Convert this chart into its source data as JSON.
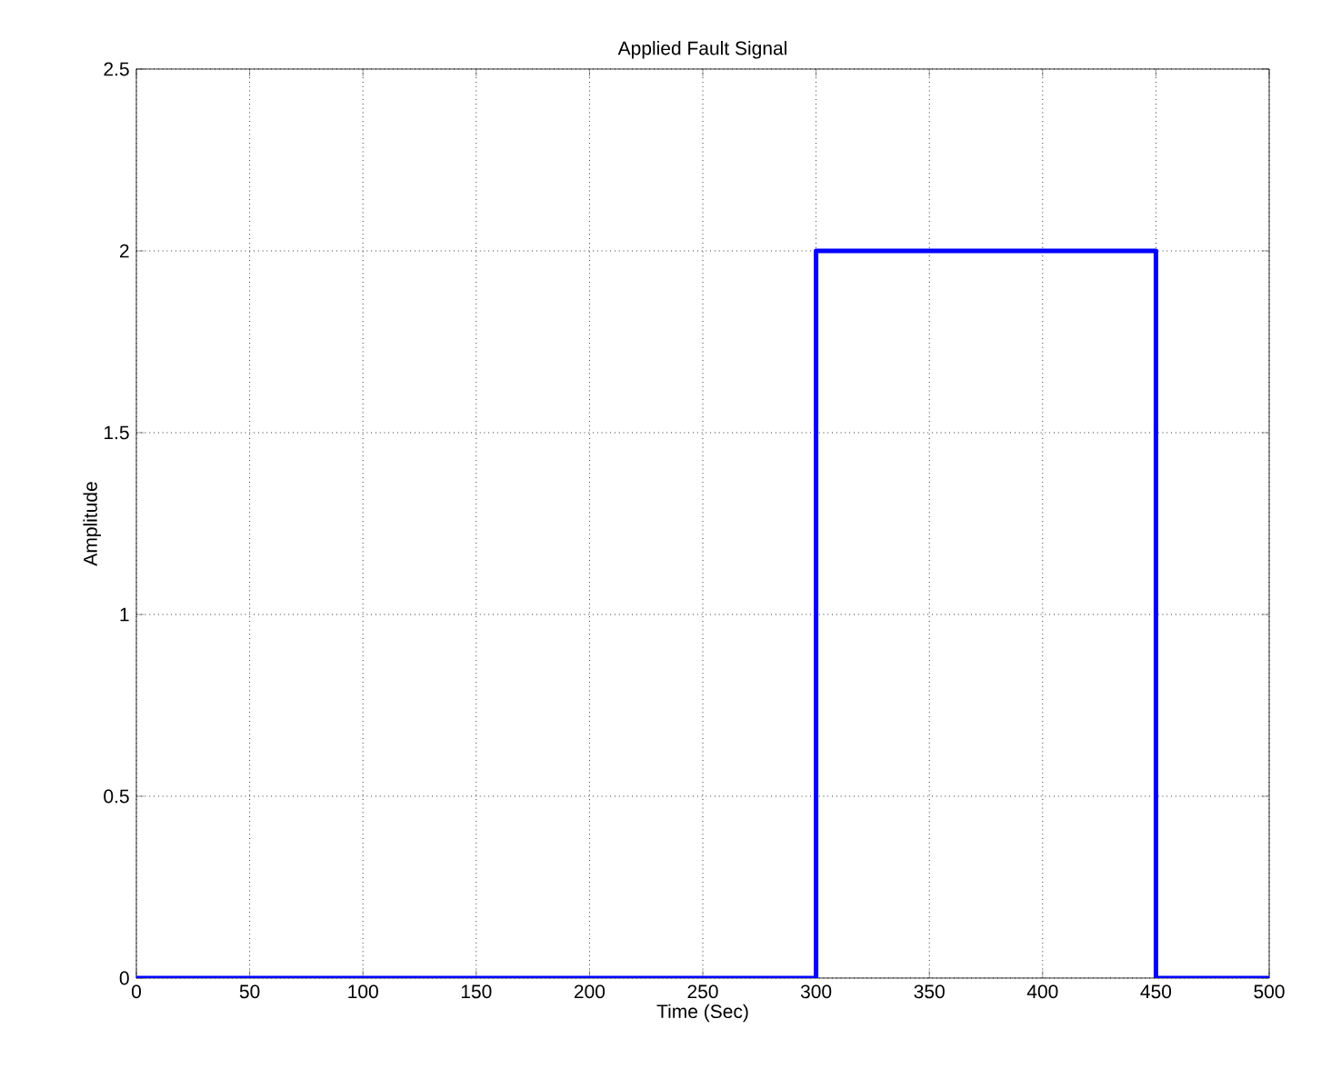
{
  "chart_data": {
    "type": "line",
    "title": "Applied Fault Signal",
    "xlabel": "Time (Sec)",
    "ylabel": "Amplitude",
    "x": [
      0,
      300,
      300,
      450,
      450,
      500
    ],
    "series": [
      {
        "color": "#0000ff",
        "values": [
          0,
          0,
          2,
          2,
          0,
          0
        ]
      }
    ],
    "xlim": [
      0,
      500
    ],
    "ylim": [
      0,
      2.5
    ],
    "xticks": [
      0,
      50,
      100,
      150,
      200,
      250,
      300,
      350,
      400,
      450,
      500
    ],
    "yticks": [
      0,
      0.5,
      1,
      1.5,
      2,
      2.5
    ],
    "grid": true,
    "line_style": "solid"
  }
}
